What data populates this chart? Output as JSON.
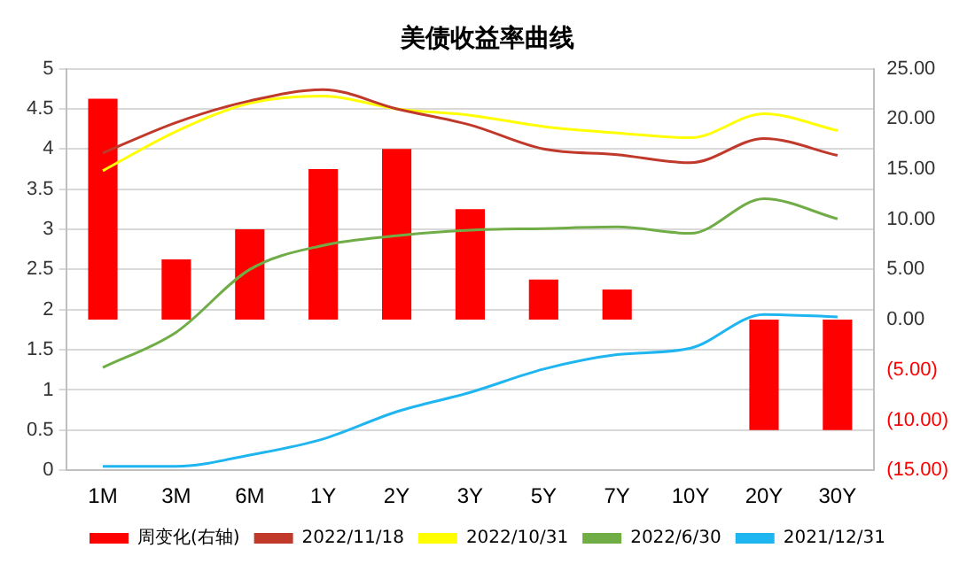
{
  "chart_data": {
    "type": "bar",
    "title": "美债收益率曲线",
    "categories": [
      "1M",
      "3M",
      "6M",
      "1Y",
      "2Y",
      "3Y",
      "5Y",
      "7Y",
      "10Y",
      "20Y",
      "30Y"
    ],
    "series": [
      {
        "name": "周变化(右轴)",
        "axis": "y2",
        "color": "#ff0000",
        "values": [
          22,
          6,
          9,
          15,
          17,
          11,
          4,
          3,
          0,
          -11,
          -11
        ]
      },
      {
        "name": "2022/11/18",
        "type": "line",
        "color": "#c0392b",
        "values": [
          3.95,
          4.33,
          4.6,
          4.74,
          4.5,
          4.3,
          4.0,
          3.93,
          3.83,
          4.13,
          3.92
        ]
      },
      {
        "name": "2022/10/31",
        "type": "line",
        "color": "#ffff00",
        "values": [
          3.73,
          4.22,
          4.57,
          4.66,
          4.5,
          4.42,
          4.28,
          4.2,
          4.14,
          4.44,
          4.23
        ]
      },
      {
        "name": "2022/6/30",
        "type": "line",
        "color": "#70ad47",
        "values": [
          1.28,
          1.72,
          2.5,
          2.8,
          2.92,
          2.99,
          3.01,
          3.03,
          2.95,
          3.38,
          3.13
        ]
      },
      {
        "name": "2021/12/31",
        "type": "line",
        "color": "#1fb5f0",
        "values": [
          0.05,
          0.05,
          0.19,
          0.39,
          0.73,
          0.97,
          1.26,
          1.44,
          1.52,
          1.94,
          1.91
        ]
      }
    ],
    "ylim": [
      0,
      5
    ],
    "yticks": [
      0,
      0.5,
      1,
      1.5,
      2,
      2.5,
      3,
      3.5,
      4,
      4.5,
      5
    ],
    "y2lim": [
      -15,
      25
    ],
    "y2ticks": [
      {
        "value": -15,
        "label": "(15.00)"
      },
      {
        "value": -10,
        "label": "(10.00)"
      },
      {
        "value": -5,
        "label": "(5.00)"
      },
      {
        "value": 0,
        "label": "0.00"
      },
      {
        "value": 5,
        "label": "5.00"
      },
      {
        "value": 10,
        "label": "10.00"
      },
      {
        "value": 15,
        "label": "15.00"
      },
      {
        "value": 20,
        "label": "20.00"
      },
      {
        "value": 25,
        "label": "25.00"
      }
    ],
    "grid": "y",
    "legend": "bottom",
    "marker": "none",
    "line_style": "solid"
  }
}
